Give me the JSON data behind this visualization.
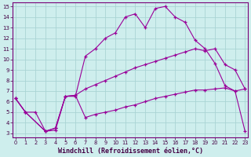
{
  "bg_color": "#ceeeed",
  "grid_color": "#aad4d4",
  "line_color": "#990099",
  "xlabel": "Windchill (Refroidissement éolien,°C)",
  "xlabel_fontsize": 6.0,
  "ylabel_ticks": [
    3,
    4,
    5,
    6,
    7,
    8,
    9,
    10,
    11,
    12,
    13,
    14,
    15
  ],
  "xlabel_ticks": [
    0,
    1,
    2,
    3,
    4,
    5,
    6,
    7,
    8,
    9,
    10,
    11,
    12,
    13,
    14,
    15,
    16,
    17,
    18,
    19,
    20,
    21,
    22,
    23
  ],
  "xlim": [
    -0.3,
    23.3
  ],
  "ylim": [
    2.6,
    15.4
  ],
  "series1_x": [
    0,
    1,
    2,
    3,
    4,
    5,
    6,
    7,
    8,
    9,
    10,
    11,
    12,
    13,
    14,
    15,
    16,
    17,
    18,
    19,
    20,
    21,
    22,
    23
  ],
  "series1_y": [
    6.3,
    5.0,
    5.0,
    3.2,
    3.3,
    6.5,
    6.5,
    10.3,
    11.0,
    12.0,
    12.5,
    14.0,
    14.3,
    13.0,
    14.8,
    15.0,
    14.0,
    13.5,
    11.8,
    11.0,
    9.6,
    7.5,
    7.0,
    3.2
  ],
  "series2_x": [
    0,
    1,
    3,
    4,
    5,
    6,
    7,
    8,
    9,
    10,
    11,
    12,
    13,
    14,
    15,
    16,
    17,
    18,
    19,
    20,
    21,
    22,
    23
  ],
  "series2_y": [
    6.3,
    5.0,
    3.2,
    3.5,
    6.5,
    6.6,
    7.2,
    7.6,
    8.0,
    8.4,
    8.8,
    9.2,
    9.5,
    9.8,
    10.1,
    10.4,
    10.7,
    11.0,
    10.8,
    11.0,
    9.5,
    9.0,
    7.2
  ],
  "series3_x": [
    0,
    1,
    3,
    4,
    5,
    6,
    7,
    8,
    9,
    10,
    11,
    12,
    13,
    14,
    15,
    16,
    17,
    18,
    19,
    20,
    21,
    22,
    23
  ],
  "series3_y": [
    6.3,
    5.0,
    3.2,
    3.5,
    6.5,
    6.6,
    4.5,
    4.8,
    5.0,
    5.2,
    5.5,
    5.7,
    6.0,
    6.3,
    6.5,
    6.7,
    6.9,
    7.1,
    7.1,
    7.2,
    7.3,
    7.0,
    7.2
  ]
}
